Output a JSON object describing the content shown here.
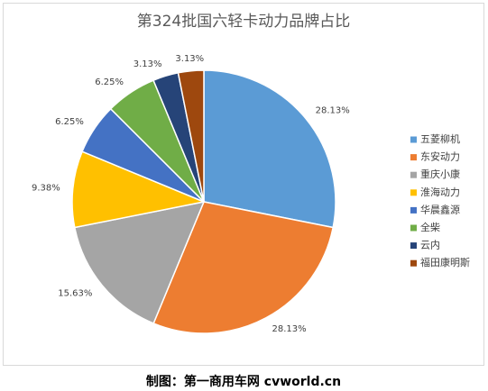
{
  "chart_data": {
    "type": "pie",
    "title": "第324批国六轻卡动力品牌占比",
    "categories": [
      "五菱柳机",
      "东安动力",
      "重庆小康",
      "淮海动力",
      "华晨鑫源",
      "全柴",
      "云内",
      "福田康明斯"
    ],
    "values": [
      28.13,
      28.13,
      15.63,
      9.38,
      6.25,
      6.25,
      3.13,
      3.13
    ],
    "value_labels": [
      "28.13%",
      "28.13%",
      "15.63%",
      "9.38%",
      "6.25%",
      "6.25%",
      "3.13%",
      "3.13%"
    ],
    "colors": [
      "#5b9bd5",
      "#ed7d31",
      "#a5a5a5",
      "#ffc000",
      "#4472c4",
      "#70ad47",
      "#264478",
      "#9e480e"
    ],
    "legend": "right",
    "source": "制图：第一商用车网 cvworld.cn"
  }
}
